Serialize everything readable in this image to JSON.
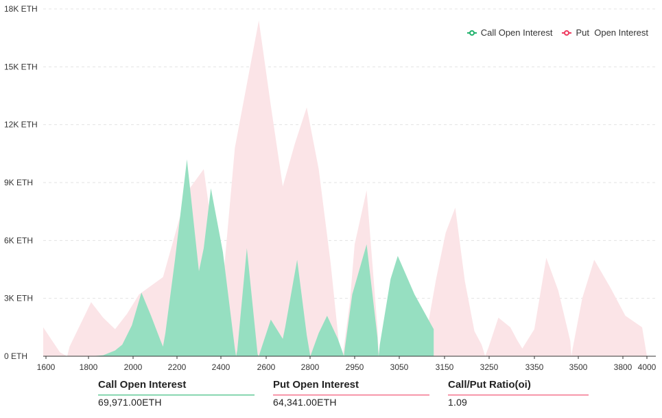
{
  "chart_data": {
    "type": "area",
    "title": "",
    "xlabel": "",
    "ylabel": "",
    "y_unit": "ETH",
    "ylim": [
      0,
      18000
    ],
    "y_ticks": [
      {
        "value": 0,
        "label": "0 ETH"
      },
      {
        "value": 3000,
        "label": "3K ETH"
      },
      {
        "value": 6000,
        "label": "6K ETH"
      },
      {
        "value": 9000,
        "label": "9K ETH"
      },
      {
        "value": 12000,
        "label": "12K ETH"
      },
      {
        "value": 15000,
        "label": "15K ETH"
      },
      {
        "value": 18000,
        "label": "18K ETH"
      }
    ],
    "x_ticks": [
      "1600",
      "1800",
      "2000",
      "2200",
      "2400",
      "2600",
      "2800",
      "2950",
      "3050",
      "3150",
      "3250",
      "3350",
      "3500",
      "3800",
      "4000"
    ],
    "grid": true,
    "legend_position": "top-right",
    "series": [
      {
        "name": "Call Open Interest",
        "color": "#20b26c",
        "fill": "#96dfc1",
        "points": [
          [
            0.0,
            0
          ],
          [
            1.0,
            0
          ],
          [
            2.0,
            0
          ],
          [
            2.5,
            50
          ],
          [
            3.0,
            300
          ],
          [
            3.3,
            600
          ],
          [
            3.7,
            1600
          ],
          [
            4.1,
            3300
          ],
          [
            4.5,
            2100
          ],
          [
            4.9,
            800
          ],
          [
            5.0,
            500
          ],
          [
            5.1,
            1200
          ],
          [
            5.5,
            5000
          ],
          [
            6.0,
            10200
          ],
          [
            6.5,
            4400
          ],
          [
            6.7,
            5600
          ],
          [
            7.0,
            8700
          ],
          [
            7.5,
            5400
          ],
          [
            8.0,
            400
          ],
          [
            8.05,
            0
          ],
          [
            8.1,
            300
          ],
          [
            8.5,
            5600
          ],
          [
            8.95,
            100
          ],
          [
            9.0,
            0
          ],
          [
            9.05,
            200
          ],
          [
            9.5,
            1900
          ],
          [
            10.0,
            900
          ],
          [
            10.1,
            1500
          ],
          [
            10.6,
            5000
          ],
          [
            11.0,
            1100
          ],
          [
            11.15,
            0
          ],
          [
            11.5,
            1200
          ],
          [
            11.85,
            2100
          ],
          [
            12.3,
            900
          ],
          [
            12.5,
            200
          ],
          [
            12.55,
            0
          ],
          [
            12.6,
            500
          ],
          [
            12.9,
            3200
          ],
          [
            13.5,
            5800
          ],
          [
            13.95,
            1000
          ],
          [
            14.0,
            0
          ],
          [
            14.05,
            600
          ],
          [
            14.5,
            4000
          ],
          [
            14.8,
            5200
          ],
          [
            15.5,
            3200
          ],
          [
            16.3,
            1400
          ],
          [
            16.3,
            0
          ]
        ]
      },
      {
        "name": "Put Open Interest",
        "color": "#ef3b5f",
        "fill": "#fbe4e7",
        "points": [
          [
            0.0,
            1500
          ],
          [
            0.7,
            200
          ],
          [
            1.0,
            0
          ],
          [
            1.1,
            500
          ],
          [
            2.0,
            2800
          ],
          [
            2.5,
            2000
          ],
          [
            3.0,
            1400
          ],
          [
            3.5,
            2200
          ],
          [
            4.0,
            3200
          ],
          [
            5.0,
            4100
          ],
          [
            6.0,
            8500
          ],
          [
            6.7,
            9700
          ],
          [
            7.0,
            7000
          ],
          [
            7.5,
            3800
          ],
          [
            8.0,
            10800
          ],
          [
            9.0,
            17400
          ],
          [
            9.5,
            13000
          ],
          [
            10.0,
            8800
          ],
          [
            10.5,
            11000
          ],
          [
            11.0,
            12900
          ],
          [
            11.5,
            9700
          ],
          [
            12.0,
            4800
          ],
          [
            12.35,
            600
          ],
          [
            12.5,
            0
          ],
          [
            12.8,
            2800
          ],
          [
            13.0,
            5800
          ],
          [
            13.5,
            8600
          ],
          [
            13.95,
            1500
          ],
          [
            14.0,
            200
          ],
          [
            14.05,
            0
          ],
          [
            14.3,
            600
          ],
          [
            14.7,
            3300
          ],
          [
            15.0,
            4600
          ],
          [
            15.5,
            2400
          ],
          [
            16.0,
            1200
          ],
          [
            16.4,
            4000
          ],
          [
            16.8,
            6400
          ],
          [
            17.2,
            7700
          ],
          [
            17.6,
            3900
          ],
          [
            18.0,
            1300
          ],
          [
            18.3,
            600
          ],
          [
            18.45,
            0
          ],
          [
            18.6,
            500
          ],
          [
            19.0,
            2000
          ],
          [
            19.5,
            1500
          ],
          [
            19.8,
            800
          ],
          [
            20.0,
            400
          ],
          [
            20.5,
            1400
          ],
          [
            21.0,
            5100
          ],
          [
            21.5,
            3400
          ],
          [
            22.0,
            800
          ],
          [
            22.05,
            0
          ],
          [
            22.1,
            400
          ],
          [
            22.5,
            3000
          ],
          [
            23.0,
            5000
          ],
          [
            23.7,
            3500
          ],
          [
            24.3,
            2100
          ],
          [
            25.0,
            1500
          ],
          [
            25.2,
            0
          ]
        ]
      }
    ]
  },
  "legend": {
    "call": "Call Open Interest",
    "put": "Put  Open Interest"
  },
  "summary": {
    "call_label": "Call Open Interest",
    "call_value": "69,971.00ETH",
    "put_label": "Put Open Interest",
    "put_value": "64,341.00ETH",
    "ratio_label": "Call/Put Ratio(oi)",
    "ratio_value": "1.09"
  }
}
